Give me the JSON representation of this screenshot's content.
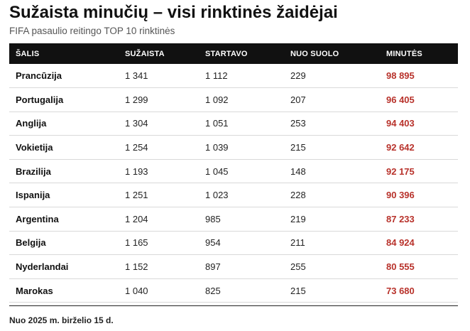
{
  "title": "Sužaista minučių – visi rinktinės žaidėjai",
  "subtitle": "FIFA pasaulio reitingo TOP 10 rinktinės",
  "table": {
    "headers": {
      "country": "ŠALIS",
      "played": "SUŽAISTA",
      "started": "STARTAVO",
      "bench": "NUO SUOLO",
      "minutes": "MINUTĖS"
    },
    "rows": [
      {
        "country": "Prancūzija",
        "played": "1 341",
        "started": "1 112",
        "bench": "229",
        "minutes": "98 895"
      },
      {
        "country": "Portugalija",
        "played": "1 299",
        "started": "1 092",
        "bench": "207",
        "minutes": "96 405"
      },
      {
        "country": "Anglija",
        "played": "1 304",
        "started": "1 051",
        "bench": "253",
        "minutes": "94 403"
      },
      {
        "country": "Vokietija",
        "played": "1 254",
        "started": "1 039",
        "bench": "215",
        "minutes": "92 642"
      },
      {
        "country": "Brazilija",
        "played": "1 193",
        "started": "1 045",
        "bench": "148",
        "minutes": "92 175"
      },
      {
        "country": "Ispanija",
        "played": "1 251",
        "started": "1 023",
        "bench": "228",
        "minutes": "90 396"
      },
      {
        "country": "Argentina",
        "played": "1 204",
        "started": "985",
        "bench": "219",
        "minutes": "87 233"
      },
      {
        "country": "Belgija",
        "played": "1 165",
        "started": "954",
        "bench": "211",
        "minutes": "84 924"
      },
      {
        "country": "Nyderlandai",
        "played": "1 152",
        "started": "897",
        "bench": "255",
        "minutes": "80 555"
      },
      {
        "country": "Marokas",
        "played": "1 040",
        "started": "825",
        "bench": "215",
        "minutes": "73 680"
      }
    ]
  },
  "footnote": "Nuo 2025 m. birželio 15 d.",
  "colors": {
    "header_bg": "#111111",
    "minutes_accent": "#b8322b"
  }
}
